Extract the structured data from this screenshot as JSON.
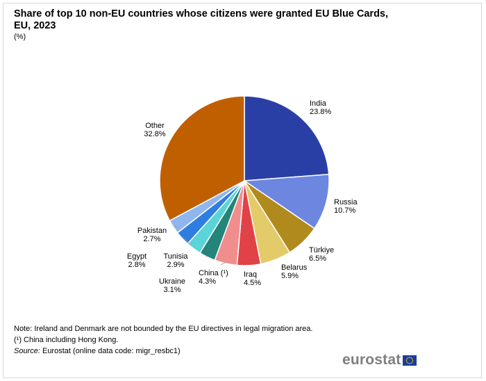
{
  "title": "Share of top 10 non-EU countries whose citizens were granted EU Blue Cards, EU, 2023",
  "unit": "(%)",
  "chart_data": {
    "type": "pie",
    "title": "Share of top 10 non-EU countries whose citizens were granted EU Blue Cards, EU, 2023",
    "unit": "(%)",
    "slices": [
      {
        "label": "India",
        "value": 23.8,
        "display": "23.8%",
        "color": "#2a3fa6"
      },
      {
        "label": "Russia",
        "value": 10.7,
        "display": "10.7%",
        "color": "#6d86e0"
      },
      {
        "label": "Türkiye",
        "value": 6.5,
        "display": "6.5%",
        "color": "#b08a1c"
      },
      {
        "label": "Belarus",
        "value": 5.9,
        "display": "5.9%",
        "color": "#e4cb6a"
      },
      {
        "label": "Iraq",
        "value": 4.5,
        "display": "4.5%",
        "color": "#e04248"
      },
      {
        "label": "China (¹)",
        "value": 4.3,
        "display": "4.3%",
        "color": "#f08e8e"
      },
      {
        "label": "Ukraine",
        "value": 3.1,
        "display": "3.1%",
        "color": "#23847a"
      },
      {
        "label": "Tunisia",
        "value": 2.9,
        "display": "2.9%",
        "color": "#5ad4d6"
      },
      {
        "label": "Egypt",
        "value": 2.8,
        "display": "2.8%",
        "color": "#2f7de1"
      },
      {
        "label": "Pakistan",
        "value": 2.7,
        "display": "2.7%",
        "color": "#8fb6ef"
      },
      {
        "label": "Other",
        "value": 32.8,
        "display": "32.8%",
        "color": "#c05f00"
      }
    ]
  },
  "notes": {
    "note": "Note:  Ireland and Denmark are not bounded by the EU directives in legal migration area.",
    "footnote": "(¹) China including Hong Kong.",
    "source_label": "Source:",
    "source_text": " Eurostat (online data code: migr_resbc1)"
  },
  "logo": {
    "text": "eurostat"
  }
}
